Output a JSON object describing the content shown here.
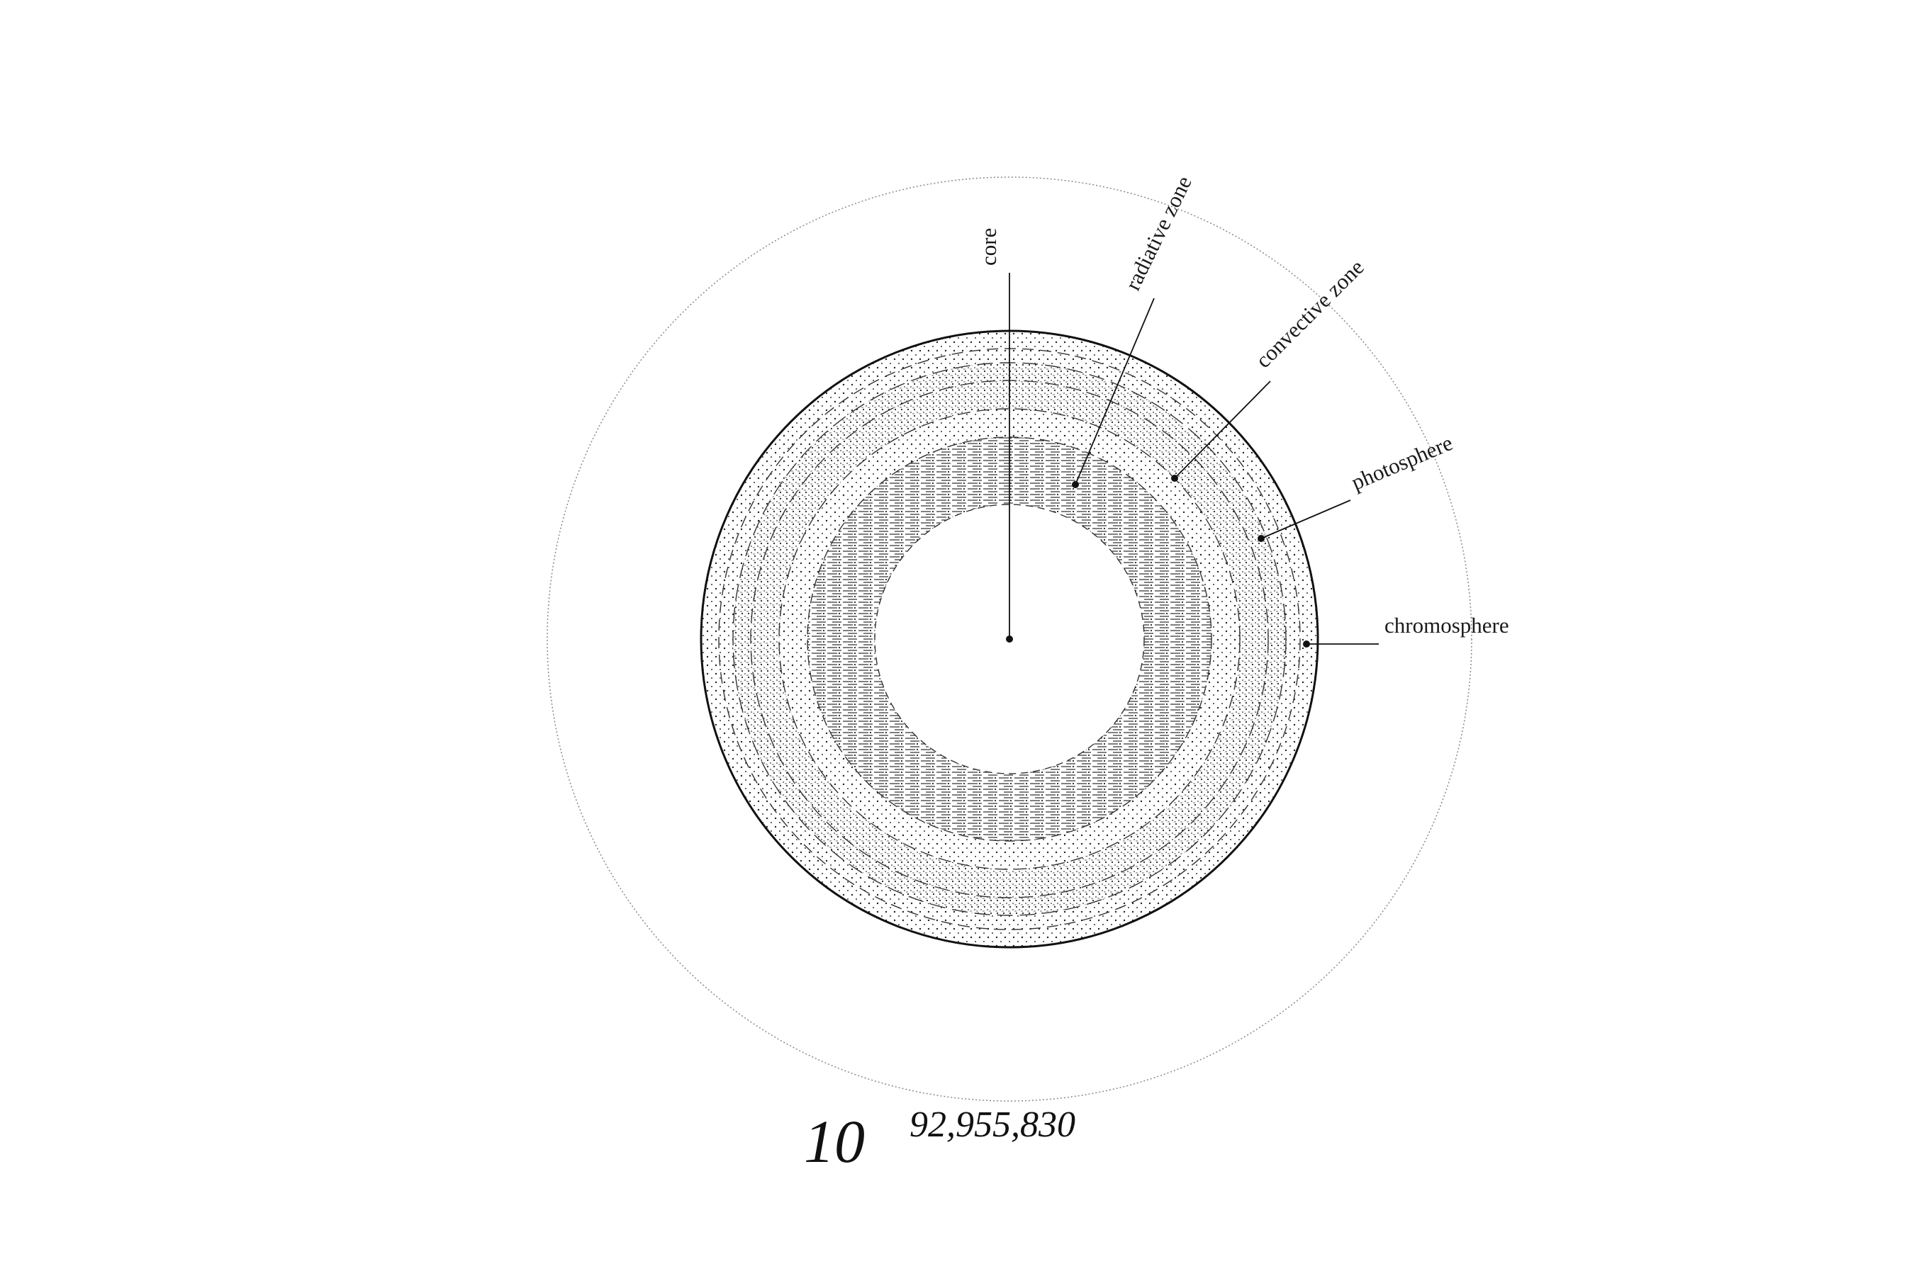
{
  "labels": {
    "core": "core",
    "radiative": "radiative zone",
    "convective": "convective zone",
    "photosphere": "photosphere",
    "chromosphere": "chromosphere"
  },
  "scale": {
    "base": "10",
    "exponent": "92,955,830"
  },
  "colors": {
    "ink": "#111111",
    "outer_ring": "#8a8a8a",
    "background": "#ffffff"
  }
}
